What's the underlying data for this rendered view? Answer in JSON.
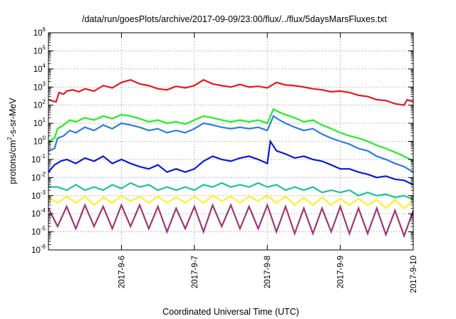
{
  "chart_data": {
    "type": "line",
    "title": "/data/run/goesPlots/archive/2017-09-09/23:00/flux/../flux/5daysMarsFluxes.txt",
    "xlabel": "Coordinated Universal Time (UTC)",
    "ylabel_parts": [
      "protons/cm",
      "2",
      "-s-sr-MeV"
    ],
    "yscale": "log",
    "xlim": [
      "2017-09-05T00:00",
      "2017-09-10T00:00"
    ],
    "ylim": [
      1e-06,
      1000000.0
    ],
    "grid": true,
    "legend": "none",
    "x_ticks": [
      {
        "x": "2017-09-06T00:00",
        "label": "2017-9-6"
      },
      {
        "x": "2017-09-07T00:00",
        "label": "2017-9-7"
      },
      {
        "x": "2017-09-08T00:00",
        "label": "2017-9-8"
      },
      {
        "x": "2017-09-09T00:00",
        "label": "2017-9-9"
      },
      {
        "x": "2017-09-10T00:00",
        "label": "2017-9-10"
      }
    ],
    "y_ticks": [
      {
        "y": 1000000.0,
        "base": "10",
        "exp": "6"
      },
      {
        "y": 100000.0,
        "base": "10",
        "exp": "5"
      },
      {
        "y": 10000.0,
        "base": "10",
        "exp": "4"
      },
      {
        "y": 1000.0,
        "base": "10",
        "exp": "3"
      },
      {
        "y": 100.0,
        "base": "10",
        "exp": "2"
      },
      {
        "y": 10.0,
        "base": "10",
        "exp": "1"
      },
      {
        "y": 1.0,
        "base": "10",
        "exp": "0"
      },
      {
        "y": 0.1,
        "base": "10",
        "exp": "-1"
      },
      {
        "y": 0.01,
        "base": "10",
        "exp": "-2"
      },
      {
        "y": 0.001,
        "base": "10",
        "exp": "-3"
      },
      {
        "y": 0.0001,
        "base": "10",
        "exp": "-4"
      },
      {
        "y": 1e-05,
        "base": "10",
        "exp": "-5"
      },
      {
        "y": 1e-06,
        "base": "10",
        "exp": "-6"
      }
    ],
    "series": [
      {
        "color": "#e41a1c",
        "x": [
          "2017-09-05T00:00",
          "2017-09-05T02:30",
          "2017-09-05T03:30",
          "2017-09-05T05:00",
          "2017-09-05T06:00",
          "2017-09-05T08:00",
          "2017-09-05T10:00",
          "2017-09-05T12:00",
          "2017-09-05T15:00",
          "2017-09-05T18:00",
          "2017-09-05T21:00",
          "2017-09-06T00:00",
          "2017-09-06T03:00",
          "2017-09-06T06:00",
          "2017-09-06T09:00",
          "2017-09-06T12:00",
          "2017-09-06T15:00",
          "2017-09-06T18:00",
          "2017-09-06T21:00",
          "2017-09-07T00:00",
          "2017-09-07T03:00",
          "2017-09-07T06:00",
          "2017-09-07T09:00",
          "2017-09-07T12:00",
          "2017-09-07T15:00",
          "2017-09-07T18:00",
          "2017-09-07T21:00",
          "2017-09-08T00:00",
          "2017-09-08T03:00",
          "2017-09-08T06:00",
          "2017-09-08T09:00",
          "2017-09-08T12:00",
          "2017-09-08T15:00",
          "2017-09-08T18:00",
          "2017-09-08T21:00",
          "2017-09-09T00:00",
          "2017-09-09T03:00",
          "2017-09-09T06:00",
          "2017-09-09T09:00",
          "2017-09-09T12:00",
          "2017-09-09T15:00",
          "2017-09-09T18:00",
          "2017-09-09T21:00",
          "2017-09-09T22:00",
          "2017-09-10T00:00"
        ],
        "y": [
          200,
          150,
          500,
          400,
          600,
          700,
          550,
          800,
          600,
          1200,
          900,
          1800,
          2500,
          1500,
          1200,
          800,
          700,
          1100,
          900,
          1200,
          2500,
          1500,
          1200,
          1000,
          1400,
          1000,
          1100,
          900,
          1800,
          1300,
          1200,
          1000,
          800,
          700,
          550,
          600,
          500,
          350,
          300,
          200,
          180,
          120,
          100,
          200,
          150
        ]
      },
      {
        "color": "#22ee22",
        "x": [
          "2017-09-05T00:00",
          "2017-09-05T02:00",
          "2017-09-05T03:00",
          "2017-09-05T05:00",
          "2017-09-05T07:00",
          "2017-09-05T09:00",
          "2017-09-05T12:00",
          "2017-09-05T15:00",
          "2017-09-05T18:00",
          "2017-09-05T21:00",
          "2017-09-06T00:00",
          "2017-09-06T03:00",
          "2017-09-06T06:00",
          "2017-09-06T09:00",
          "2017-09-06T12:00",
          "2017-09-06T15:00",
          "2017-09-06T18:00",
          "2017-09-06T21:00",
          "2017-09-07T00:00",
          "2017-09-07T03:00",
          "2017-09-07T06:00",
          "2017-09-07T09:00",
          "2017-09-07T12:00",
          "2017-09-07T15:00",
          "2017-09-07T18:00",
          "2017-09-07T21:00",
          "2017-09-08T00:00",
          "2017-09-08T02:00",
          "2017-09-08T04:00",
          "2017-09-08T06:00",
          "2017-09-08T09:00",
          "2017-09-08T12:00",
          "2017-09-08T15:00",
          "2017-09-08T18:00",
          "2017-09-08T21:00",
          "2017-09-09T00:00",
          "2017-09-09T03:00",
          "2017-09-09T06:00",
          "2017-09-09T09:00",
          "2017-09-09T12:00",
          "2017-09-09T15:00",
          "2017-09-09T18:00",
          "2017-09-09T21:00",
          "2017-09-10T00:00"
        ],
        "y": [
          1,
          1.5,
          5,
          8,
          15,
          12,
          20,
          15,
          25,
          18,
          30,
          25,
          18,
          12,
          15,
          10,
          12,
          9,
          15,
          25,
          20,
          15,
          12,
          15,
          12,
          15,
          10,
          60,
          40,
          30,
          20,
          12,
          15,
          8,
          5,
          3,
          2,
          1.5,
          1,
          0.6,
          0.4,
          0.25,
          0.15,
          0.08
        ]
      },
      {
        "color": "#2c7de0",
        "x": [
          "2017-09-05T00:00",
          "2017-09-05T02:00",
          "2017-09-05T03:00",
          "2017-09-05T05:00",
          "2017-09-05T07:00",
          "2017-09-05T09:00",
          "2017-09-05T12:00",
          "2017-09-05T15:00",
          "2017-09-05T18:00",
          "2017-09-05T21:00",
          "2017-09-06T00:00",
          "2017-09-06T03:00",
          "2017-09-06T06:00",
          "2017-09-06T09:00",
          "2017-09-06T12:00",
          "2017-09-06T15:00",
          "2017-09-06T18:00",
          "2017-09-06T21:00",
          "2017-09-07T00:00",
          "2017-09-07T03:00",
          "2017-09-07T06:00",
          "2017-09-07T09:00",
          "2017-09-07T12:00",
          "2017-09-07T15:00",
          "2017-09-07T18:00",
          "2017-09-07T21:00",
          "2017-09-08T00:00",
          "2017-09-08T02:00",
          "2017-09-08T04:00",
          "2017-09-08T06:00",
          "2017-09-08T09:00",
          "2017-09-08T12:00",
          "2017-09-08T15:00",
          "2017-09-08T18:00",
          "2017-09-08T21:00",
          "2017-09-09T00:00",
          "2017-09-09T03:00",
          "2017-09-09T06:00",
          "2017-09-09T09:00",
          "2017-09-09T12:00",
          "2017-09-09T15:00",
          "2017-09-09T18:00",
          "2017-09-09T21:00",
          "2017-09-10T00:00"
        ],
        "y": [
          0.3,
          0.4,
          1.5,
          2,
          4,
          3,
          6,
          4,
          8,
          5,
          10,
          8,
          6,
          4,
          5,
          3,
          4,
          3,
          5,
          10,
          8,
          6,
          5,
          6,
          5,
          6,
          4,
          25,
          15,
          10,
          6,
          4,
          5,
          2.5,
          1.5,
          1,
          0.7,
          0.4,
          0.3,
          0.15,
          0.1,
          0.06,
          0.04,
          0.02
        ]
      },
      {
        "color": "#0a1ad6",
        "x": [
          "2017-09-05T00:00",
          "2017-09-05T02:00",
          "2017-09-05T04:00",
          "2017-09-05T06:00",
          "2017-09-05T09:00",
          "2017-09-05T12:00",
          "2017-09-05T15:00",
          "2017-09-05T18:00",
          "2017-09-05T21:00",
          "2017-09-06T00:00",
          "2017-09-06T03:00",
          "2017-09-06T06:00",
          "2017-09-06T09:00",
          "2017-09-06T12:00",
          "2017-09-06T15:00",
          "2017-09-06T18:00",
          "2017-09-06T21:00",
          "2017-09-07T00:00",
          "2017-09-07T03:00",
          "2017-09-07T06:00",
          "2017-09-07T09:00",
          "2017-09-07T12:00",
          "2017-09-07T15:00",
          "2017-09-07T18:00",
          "2017-09-07T21:00",
          "2017-09-08T00:00",
          "2017-09-08T01:00",
          "2017-09-08T03:00",
          "2017-09-08T06:00",
          "2017-09-08T09:00",
          "2017-09-08T12:00",
          "2017-09-08T15:00",
          "2017-09-08T18:00",
          "2017-09-08T21:00",
          "2017-09-09T00:00",
          "2017-09-09T03:00",
          "2017-09-09T06:00",
          "2017-09-09T09:00",
          "2017-09-09T12:00",
          "2017-09-09T15:00",
          "2017-09-09T18:00",
          "2017-09-09T21:00",
          "2017-09-10T00:00"
        ],
        "y": [
          0.02,
          0.05,
          0.08,
          0.1,
          0.06,
          0.12,
          0.08,
          0.15,
          0.06,
          0.1,
          0.06,
          0.04,
          0.03,
          0.05,
          0.02,
          0.03,
          0.02,
          0.03,
          0.08,
          0.15,
          0.1,
          0.08,
          0.12,
          0.15,
          0.1,
          0.06,
          1,
          0.3,
          0.2,
          0.12,
          0.15,
          0.1,
          0.08,
          0.05,
          0.03,
          0.03,
          0.02,
          0.015,
          0.01,
          0.012,
          0.008,
          0.007,
          0.004
        ]
      },
      {
        "color": "#1fc29a",
        "x": [
          "2017-09-05T00:00",
          "2017-09-05T03:00",
          "2017-09-05T06:00",
          "2017-09-05T09:00",
          "2017-09-05T12:00",
          "2017-09-05T15:00",
          "2017-09-05T18:00",
          "2017-09-05T21:00",
          "2017-09-06T00:00",
          "2017-09-06T03:00",
          "2017-09-06T06:00",
          "2017-09-06T09:00",
          "2017-09-06T12:00",
          "2017-09-06T15:00",
          "2017-09-06T18:00",
          "2017-09-06T21:00",
          "2017-09-07T00:00",
          "2017-09-07T03:00",
          "2017-09-07T06:00",
          "2017-09-07T09:00",
          "2017-09-07T12:00",
          "2017-09-07T15:00",
          "2017-09-07T18:00",
          "2017-09-07T21:00",
          "2017-09-08T00:00",
          "2017-09-08T03:00",
          "2017-09-08T06:00",
          "2017-09-08T09:00",
          "2017-09-08T12:00",
          "2017-09-08T15:00",
          "2017-09-08T18:00",
          "2017-09-08T21:00",
          "2017-09-09T00:00",
          "2017-09-09T03:00",
          "2017-09-09T06:00",
          "2017-09-09T09:00",
          "2017-09-09T12:00",
          "2017-09-09T15:00",
          "2017-09-09T18:00",
          "2017-09-09T21:00",
          "2017-09-10T00:00"
        ],
        "y": [
          0.003,
          0.003,
          0.002,
          0.004,
          0.002,
          0.003,
          0.002,
          0.004,
          0.0025,
          0.005,
          0.003,
          0.004,
          0.002,
          0.003,
          0.002,
          0.003,
          0.002,
          0.004,
          0.003,
          0.005,
          0.003,
          0.004,
          0.003,
          0.005,
          0.003,
          0.004,
          0.002,
          0.003,
          0.002,
          0.003,
          0.0015,
          0.002,
          0.0015,
          0.002,
          0.001,
          0.0015,
          0.001,
          0.0012,
          0.0008,
          0.001,
          0.0006
        ]
      },
      {
        "color": "#ffef2a",
        "x": [
          "2017-09-05T00:00",
          "2017-09-05T03:00",
          "2017-09-05T06:00",
          "2017-09-05T09:00",
          "2017-09-05T12:00",
          "2017-09-05T15:00",
          "2017-09-05T18:00",
          "2017-09-05T21:00",
          "2017-09-06T00:00",
          "2017-09-06T03:00",
          "2017-09-06T06:00",
          "2017-09-06T09:00",
          "2017-09-06T12:00",
          "2017-09-06T15:00",
          "2017-09-06T18:00",
          "2017-09-06T21:00",
          "2017-09-07T00:00",
          "2017-09-07T03:00",
          "2017-09-07T06:00",
          "2017-09-07T09:00",
          "2017-09-07T12:00",
          "2017-09-07T15:00",
          "2017-09-07T18:00",
          "2017-09-07T21:00",
          "2017-09-08T00:00",
          "2017-09-08T03:00",
          "2017-09-08T06:00",
          "2017-09-08T09:00",
          "2017-09-08T12:00",
          "2017-09-08T15:00",
          "2017-09-08T18:00",
          "2017-09-08T21:00",
          "2017-09-09T00:00",
          "2017-09-09T03:00",
          "2017-09-09T06:00",
          "2017-09-09T09:00",
          "2017-09-09T12:00",
          "2017-09-09T15:00",
          "2017-09-09T18:00",
          "2017-09-09T21:00",
          "2017-09-10T00:00"
        ],
        "y": [
          0.0008,
          0.0004,
          0.0009,
          0.0004,
          0.0009,
          0.0003,
          0.0008,
          0.0004,
          0.001,
          0.0005,
          0.0009,
          0.0004,
          0.0009,
          0.0004,
          0.0008,
          0.0004,
          0.0009,
          0.0004,
          0.001,
          0.0005,
          0.0009,
          0.0004,
          0.0009,
          0.0005,
          0.001,
          0.0004,
          0.0009,
          0.0003,
          0.0008,
          0.0003,
          0.0008,
          0.0003,
          0.0007,
          0.0003,
          0.0007,
          0.0003,
          0.0006,
          0.0002,
          0.0006,
          0.0002,
          0.0005
        ]
      },
      {
        "color": "#a0386e",
        "x": [
          "2017-09-05T00:00",
          "2017-09-05T03:00",
          "2017-09-05T06:00",
          "2017-09-05T09:00",
          "2017-09-05T12:00",
          "2017-09-05T15:00",
          "2017-09-05T18:00",
          "2017-09-05T21:00",
          "2017-09-06T00:00",
          "2017-09-06T03:00",
          "2017-09-06T06:00",
          "2017-09-06T09:00",
          "2017-09-06T12:00",
          "2017-09-06T15:00",
          "2017-09-06T18:00",
          "2017-09-06T21:00",
          "2017-09-07T00:00",
          "2017-09-07T03:00",
          "2017-09-07T06:00",
          "2017-09-07T09:00",
          "2017-09-07T12:00",
          "2017-09-07T15:00",
          "2017-09-07T18:00",
          "2017-09-07T21:00",
          "2017-09-08T00:00",
          "2017-09-08T03:00",
          "2017-09-08T06:00",
          "2017-09-08T09:00",
          "2017-09-08T12:00",
          "2017-09-08T15:00",
          "2017-09-08T18:00",
          "2017-09-08T21:00",
          "2017-09-09T00:00",
          "2017-09-09T03:00",
          "2017-09-09T06:00",
          "2017-09-09T09:00",
          "2017-09-09T12:00",
          "2017-09-09T15:00",
          "2017-09-09T18:00",
          "2017-09-09T21:00",
          "2017-09-10T00:00"
        ],
        "y": [
          0.0002,
          2e-05,
          0.00025,
          1.5e-05,
          0.0003,
          2e-05,
          0.00025,
          1.5e-05,
          0.0003,
          2e-05,
          0.0003,
          1.5e-05,
          0.00025,
          1e-05,
          0.0002,
          1.5e-05,
          0.00025,
          1e-05,
          0.0003,
          2e-05,
          0.0003,
          1.5e-05,
          0.00025,
          1.5e-05,
          0.0003,
          1e-05,
          0.00025,
          8e-06,
          0.0002,
          8e-06,
          0.0002,
          1e-05,
          0.00025,
          8e-06,
          0.0002,
          8e-06,
          0.0002,
          7e-06,
          0.00015,
          6e-06,
          0.00015
        ]
      }
    ]
  }
}
